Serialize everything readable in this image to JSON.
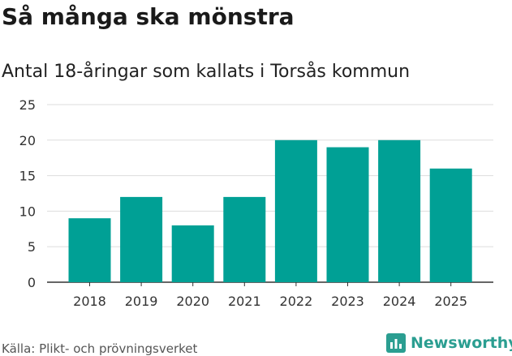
{
  "title": "Så många ska mönstra",
  "subtitle": "Antal 18-åringar som kallats i Torsås kommun",
  "source": "Källa: Plikt- och prövningsverket",
  "brand": {
    "name": "Newsworthy",
    "icon": "bar-chart-logo-icon",
    "color": "#2b9e91"
  },
  "colors": {
    "bar": "#00a095",
    "grid": "#dddddd",
    "axis": "#333333"
  },
  "chart_data": {
    "type": "bar",
    "categories": [
      "2018",
      "2019",
      "2020",
      "2021",
      "2022",
      "2023",
      "2024",
      "2025"
    ],
    "values": [
      9,
      12,
      8,
      12,
      20,
      19,
      20,
      16
    ],
    "title": "Så många ska mönstra",
    "subtitle": "Antal 18-åringar som kallats i Torsås kommun",
    "xlabel": "",
    "ylabel": "",
    "ylim": [
      0,
      25
    ],
    "yticks": [
      "0",
      "5",
      "10",
      "15",
      "20",
      "25"
    ],
    "grid": true,
    "legend": "none"
  }
}
